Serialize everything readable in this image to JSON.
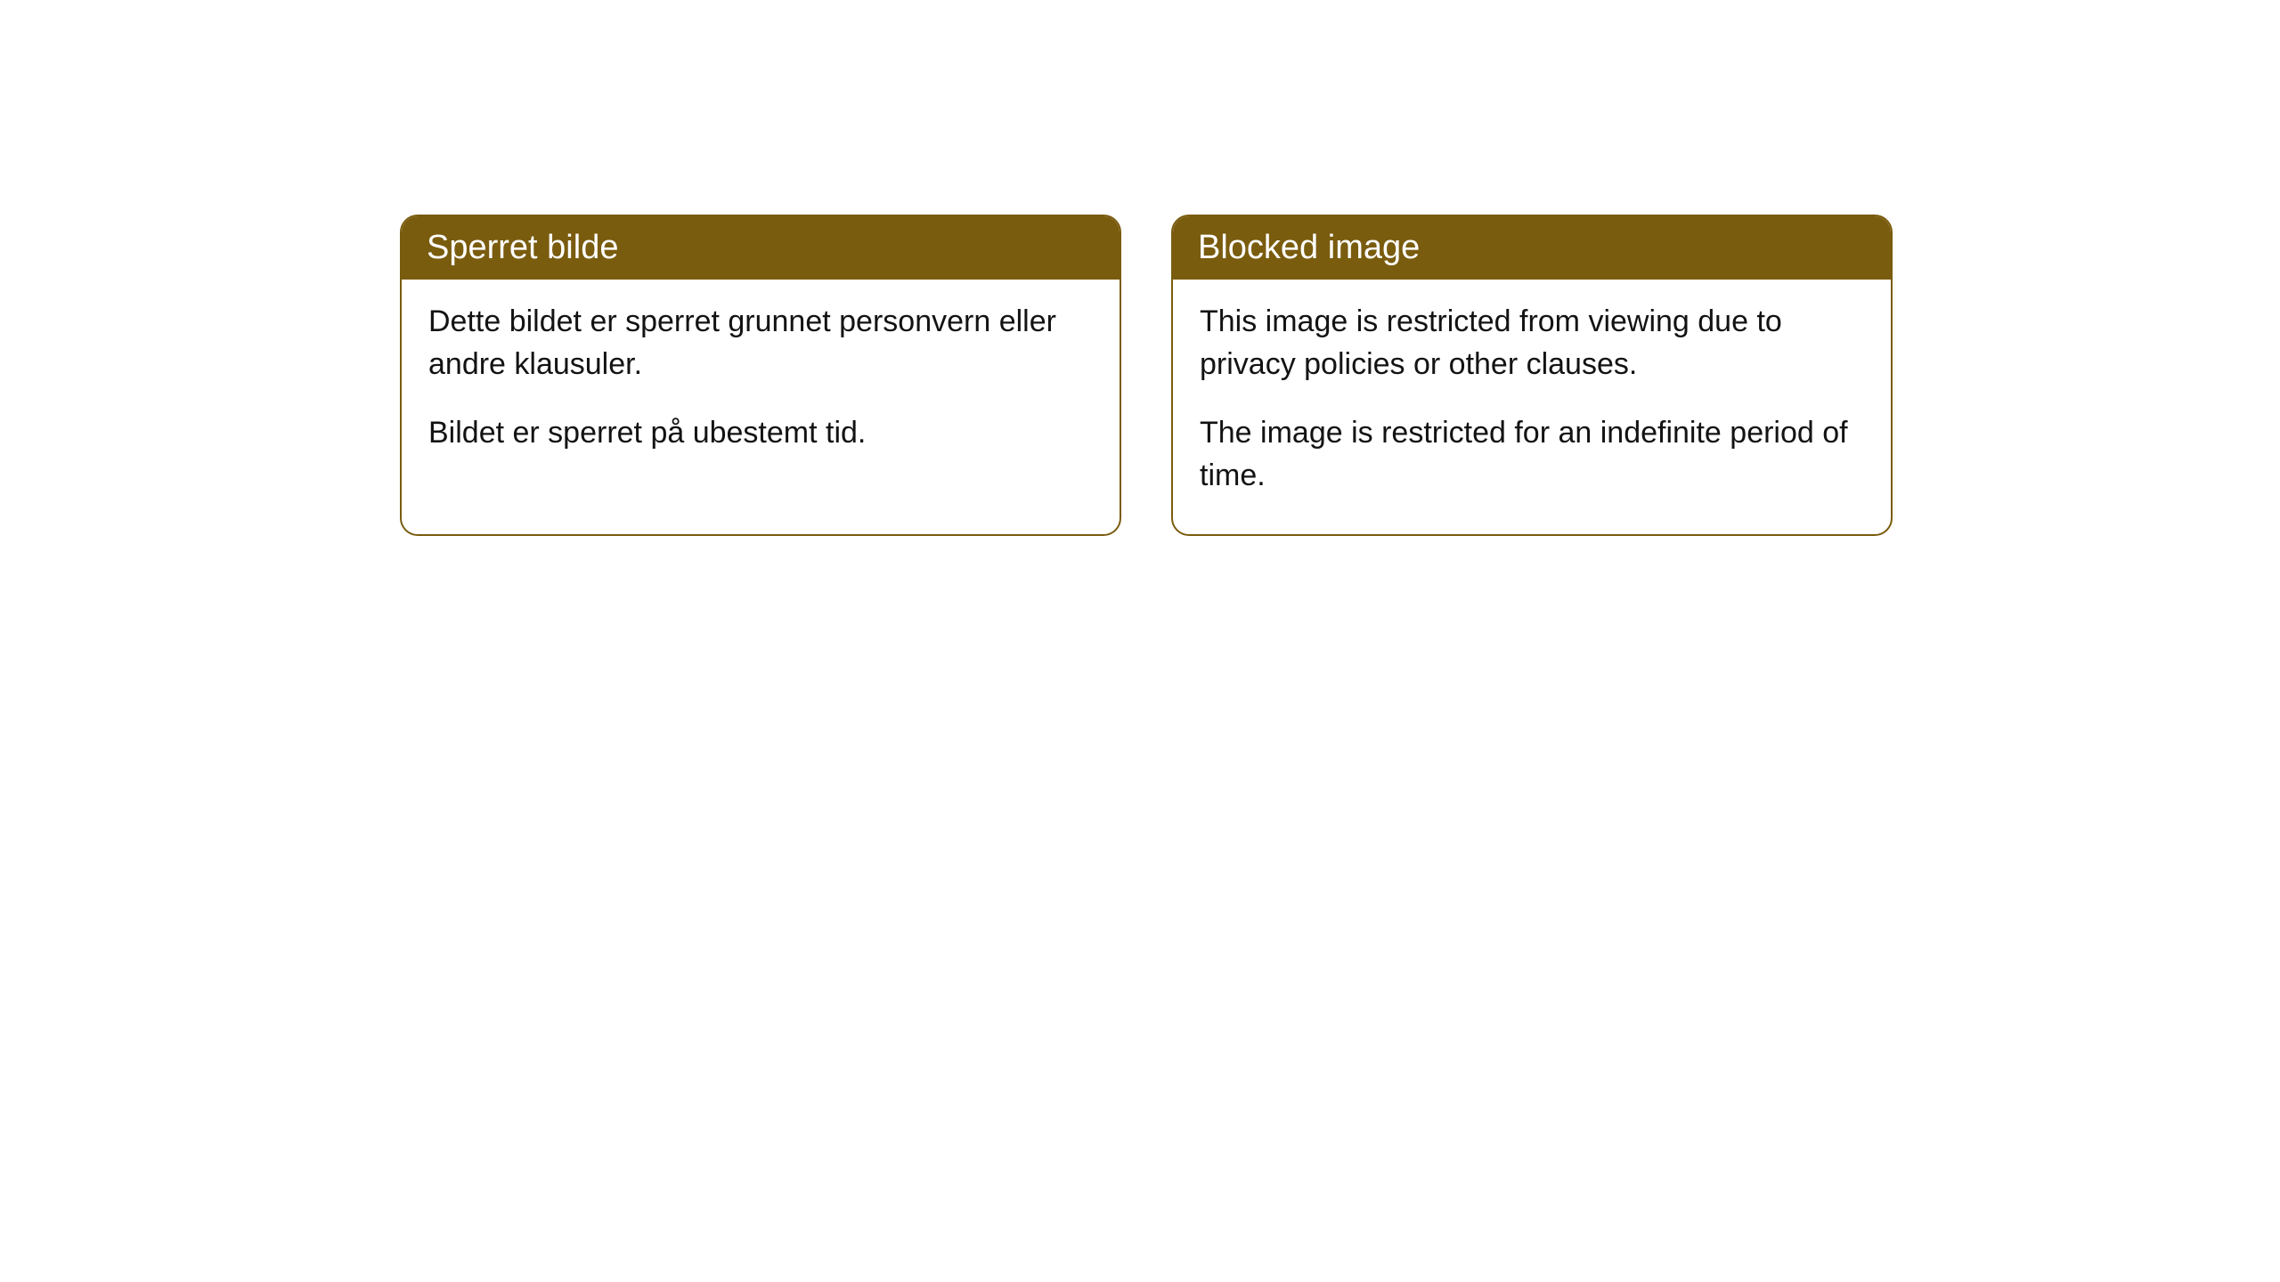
{
  "cards": [
    {
      "title": "Sperret bilde",
      "paragraph1": "Dette bildet er sperret grunnet personvern eller andre klausuler.",
      "paragraph2": "Bildet er sperret på ubestemt tid."
    },
    {
      "title": "Blocked image",
      "paragraph1": "This image is restricted from viewing due to privacy policies or other clauses.",
      "paragraph2": "The image is restricted for an indefinite period of time."
    }
  ],
  "style": {
    "header_background": "#7a5c0f",
    "header_text_color": "#ffffff",
    "border_color": "#7a5c0f",
    "body_background": "#ffffff",
    "body_text_color": "#131313",
    "border_radius": 20,
    "title_fontsize": 38,
    "body_fontsize": 34
  }
}
